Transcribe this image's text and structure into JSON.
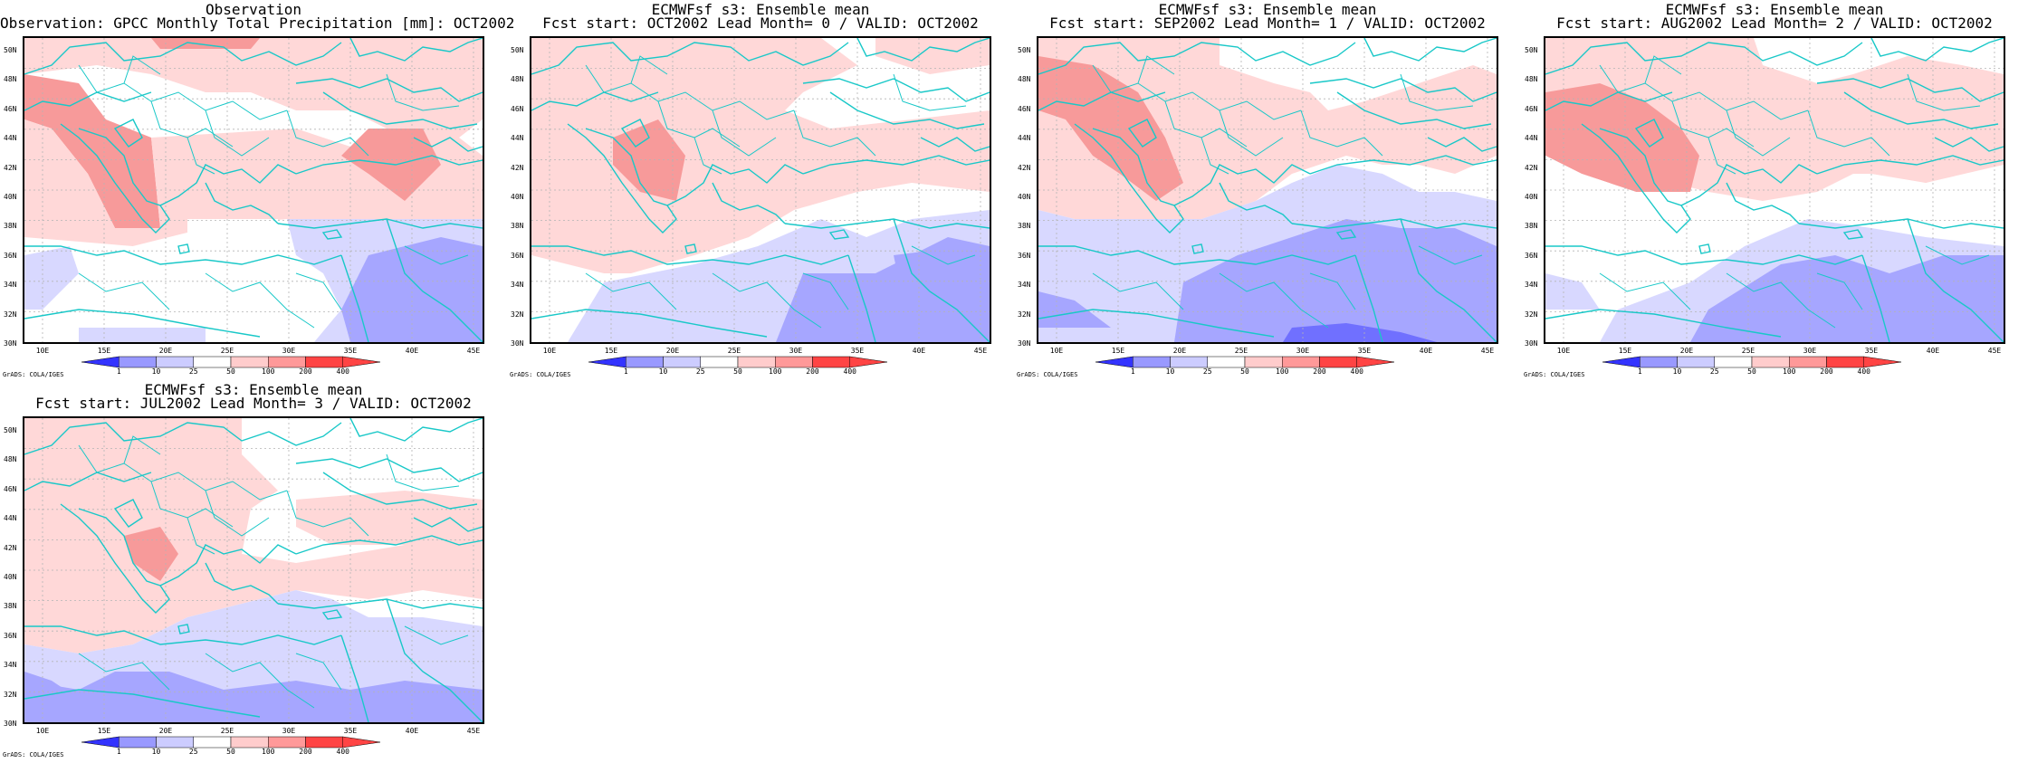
{
  "panels": [
    {
      "title1": "Observation",
      "title2": "Observation: GPCC Monthly Total Precipitation [mm]: OCT2002"
    },
    {
      "title1": "ECMWFsf s3: Ensemble mean",
      "title2": "Fcst start: OCT2002  Lead Month= 0 / VALID: OCT2002"
    },
    {
      "title1": "ECMWFsf s3: Ensemble mean",
      "title2": "Fcst start: SEP2002  Lead Month= 1 / VALID: OCT2002"
    },
    {
      "title1": "ECMWFsf s3: Ensemble mean",
      "title2": "Fcst start: AUG2002  Lead Month= 2 / VALID: OCT2002"
    },
    {
      "title1": "ECMWFsf s3: Ensemble mean",
      "title2": "Fcst start: JUL2002  Lead Month= 3 / VALID: OCT2002"
    }
  ],
  "lat_labels": [
    "50N",
    "48N",
    "46N",
    "44N",
    "42N",
    "40N",
    "38N",
    "36N",
    "34N",
    "32N",
    "30N"
  ],
  "lon_labels": [
    "10E",
    "15E",
    "20E",
    "25E",
    "30E",
    "35E",
    "40E",
    "45E"
  ],
  "colorbar": {
    "levels": [
      "1",
      "10",
      "25",
      "50",
      "100",
      "200",
      "400"
    ],
    "colors": [
      "#3333ff",
      "#9999ff",
      "#ccccff",
      "#ffffff",
      "#ffcccc",
      "#ff9999",
      "#ff4444"
    ]
  },
  "credit": "GrADS: COLA/IGES",
  "map_colors": {
    "coast": "#19c8c8",
    "grid": "#b4b4b4",
    "red_light": "#ffd8d8",
    "red_mid": "#f79a9a",
    "blue_light": "#d8d8ff",
    "blue_mid": "#a6a6ff",
    "blue_dark": "#7070ff"
  }
}
